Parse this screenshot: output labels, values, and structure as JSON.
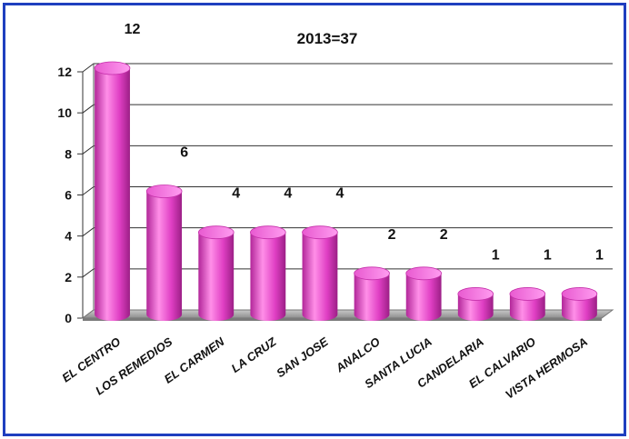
{
  "chart_data": {
    "type": "bar",
    "title": "2013=37",
    "categories": [
      "EL CENTRO",
      "LOS REMEDIOS",
      "EL CARMEN",
      "LA CRUZ",
      "SAN JOSE",
      "ANALCO",
      "SANTA LUCIA",
      "CANDELARIA",
      "EL CALVARIO",
      "VISTA HERMOSA"
    ],
    "values": [
      12,
      6,
      4,
      4,
      4,
      2,
      2,
      1,
      1,
      1
    ],
    "data_labels": [
      "12",
      "6",
      "4",
      "4",
      "4",
      "2",
      "2",
      "1",
      "1",
      "1"
    ],
    "ylim": [
      0,
      12
    ],
    "yticks": [
      0,
      2,
      4,
      6,
      8,
      10,
      12
    ],
    "ytick_labels": [
      "0",
      "2",
      "4",
      "6",
      "8",
      "10",
      "12"
    ],
    "grid": true,
    "xlabel": "",
    "ylabel": "",
    "colors": {
      "bar": "#e03fc4",
      "bar_dark": "#9c1f86",
      "bar_light": "#ff9cf0",
      "frame": "#1f3fbf",
      "floor": "#a8a8a8"
    }
  }
}
